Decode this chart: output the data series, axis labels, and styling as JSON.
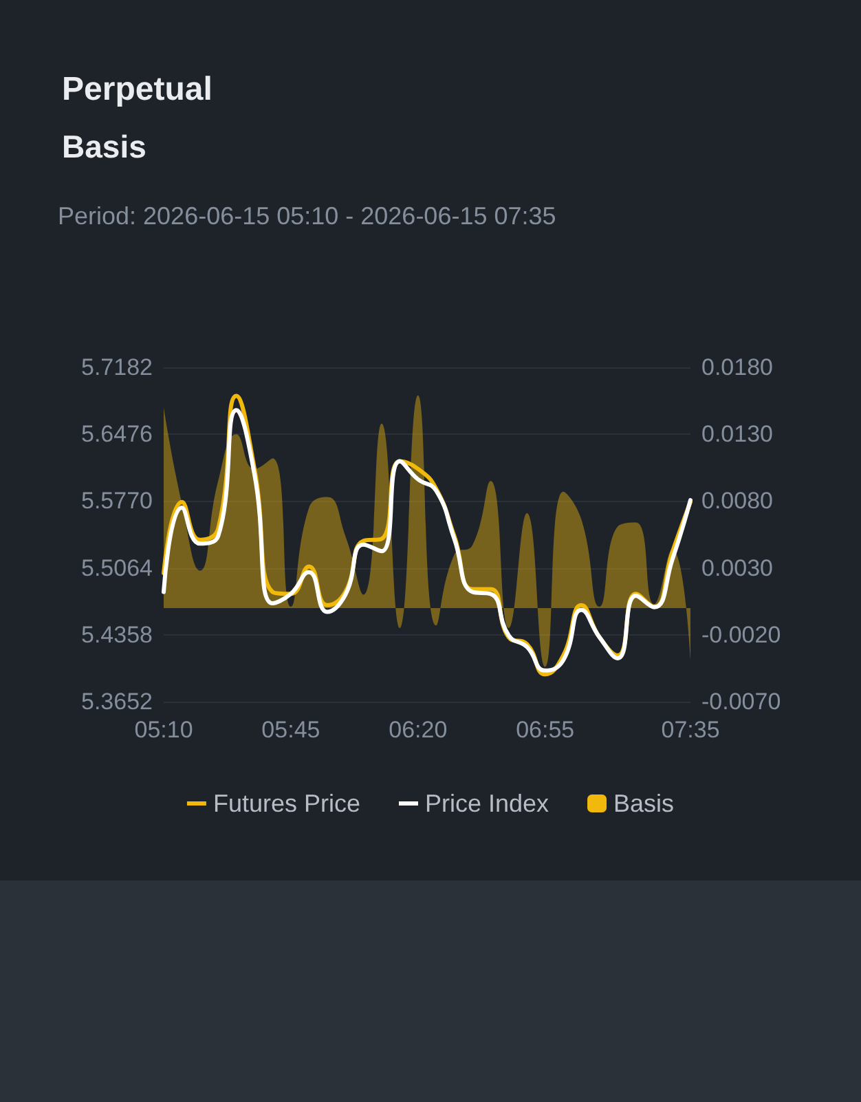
{
  "chart_data": {
    "type": "line",
    "title": "Perpetual",
    "subtitle": "Basis",
    "annotations": [
      "Period: 2026-06-15 05:10 - 2026-06-15 07:35"
    ],
    "categories": [
      "05:10",
      null,
      null,
      null,
      null,
      null,
      null,
      "05:45",
      null,
      null,
      null,
      null,
      null,
      null,
      "06:20",
      null,
      null,
      null,
      null,
      null,
      null,
      "06:55",
      null,
      null,
      null,
      null,
      null,
      null,
      null,
      "07:35"
    ],
    "series": [
      {
        "name": "Futures Price",
        "color": "#f0b90b",
        "values": [
          5.501,
          5.576,
          5.536,
          5.548,
          5.688,
          5.611,
          5.481,
          5.479,
          5.508,
          5.467,
          5.481,
          5.535,
          5.537,
          5.619,
          5.611,
          5.59,
          5.54,
          5.484,
          5.484,
          5.433,
          5.426,
          5.394,
          5.414,
          5.467,
          5.433,
          5.414,
          5.479,
          5.465,
          5.523,
          5.576
        ]
      },
      {
        "name": "Price Index",
        "color": "#ffffff",
        "values": [
          5.481,
          5.57,
          5.532,
          5.54,
          5.673,
          5.605,
          5.469,
          5.479,
          5.502,
          5.46,
          5.478,
          5.531,
          5.524,
          5.619,
          5.6,
          5.588,
          5.537,
          5.481,
          5.479,
          5.435,
          5.423,
          5.398,
          5.409,
          5.462,
          5.433,
          5.411,
          5.477,
          5.465,
          5.515,
          5.578
        ]
      },
      {
        "name": "Basis",
        "type": "area",
        "axis": "y2",
        "color": "#f0b90b",
        "values": [
          0.015,
          0.0078,
          0.0028,
          0.0095,
          0.013,
          0.0104,
          0.0112,
          0.0001,
          0.0075,
          0.0083,
          0.0054,
          0.001,
          0.0138,
          -0.0015,
          0.0159,
          -0.0013,
          0.004,
          0.0047,
          0.0095,
          -0.0015,
          0.0071,
          -0.0044,
          0.0087,
          0.0066,
          0.0001,
          0.0061,
          0.0064,
          0.0003,
          0.0044,
          -0.0038
        ]
      }
    ],
    "ylim": [
      5.3652,
      5.7182
    ],
    "yticks": [
      5.3652,
      5.4358,
      5.5064,
      {
        "value": 5.577,
        "label": "5.5770"
      },
      5.6476,
      5.7182
    ],
    "y2lim": [
      -0.007,
      0.018
    ],
    "y2ticks": [
      {
        "value": -0.007,
        "label": "-0.0070"
      },
      {
        "value": -0.002,
        "label": "-0.0020"
      },
      {
        "value": 0.003,
        "label": "0.0030"
      },
      {
        "value": 0.008,
        "label": "0.0080"
      },
      {
        "value": 0.013,
        "label": "0.0130"
      },
      {
        "value": 0.018,
        "label": "0.0180"
      }
    ],
    "grid": "y",
    "legend": "bottom",
    "marker": "none",
    "line_style": "solid"
  }
}
